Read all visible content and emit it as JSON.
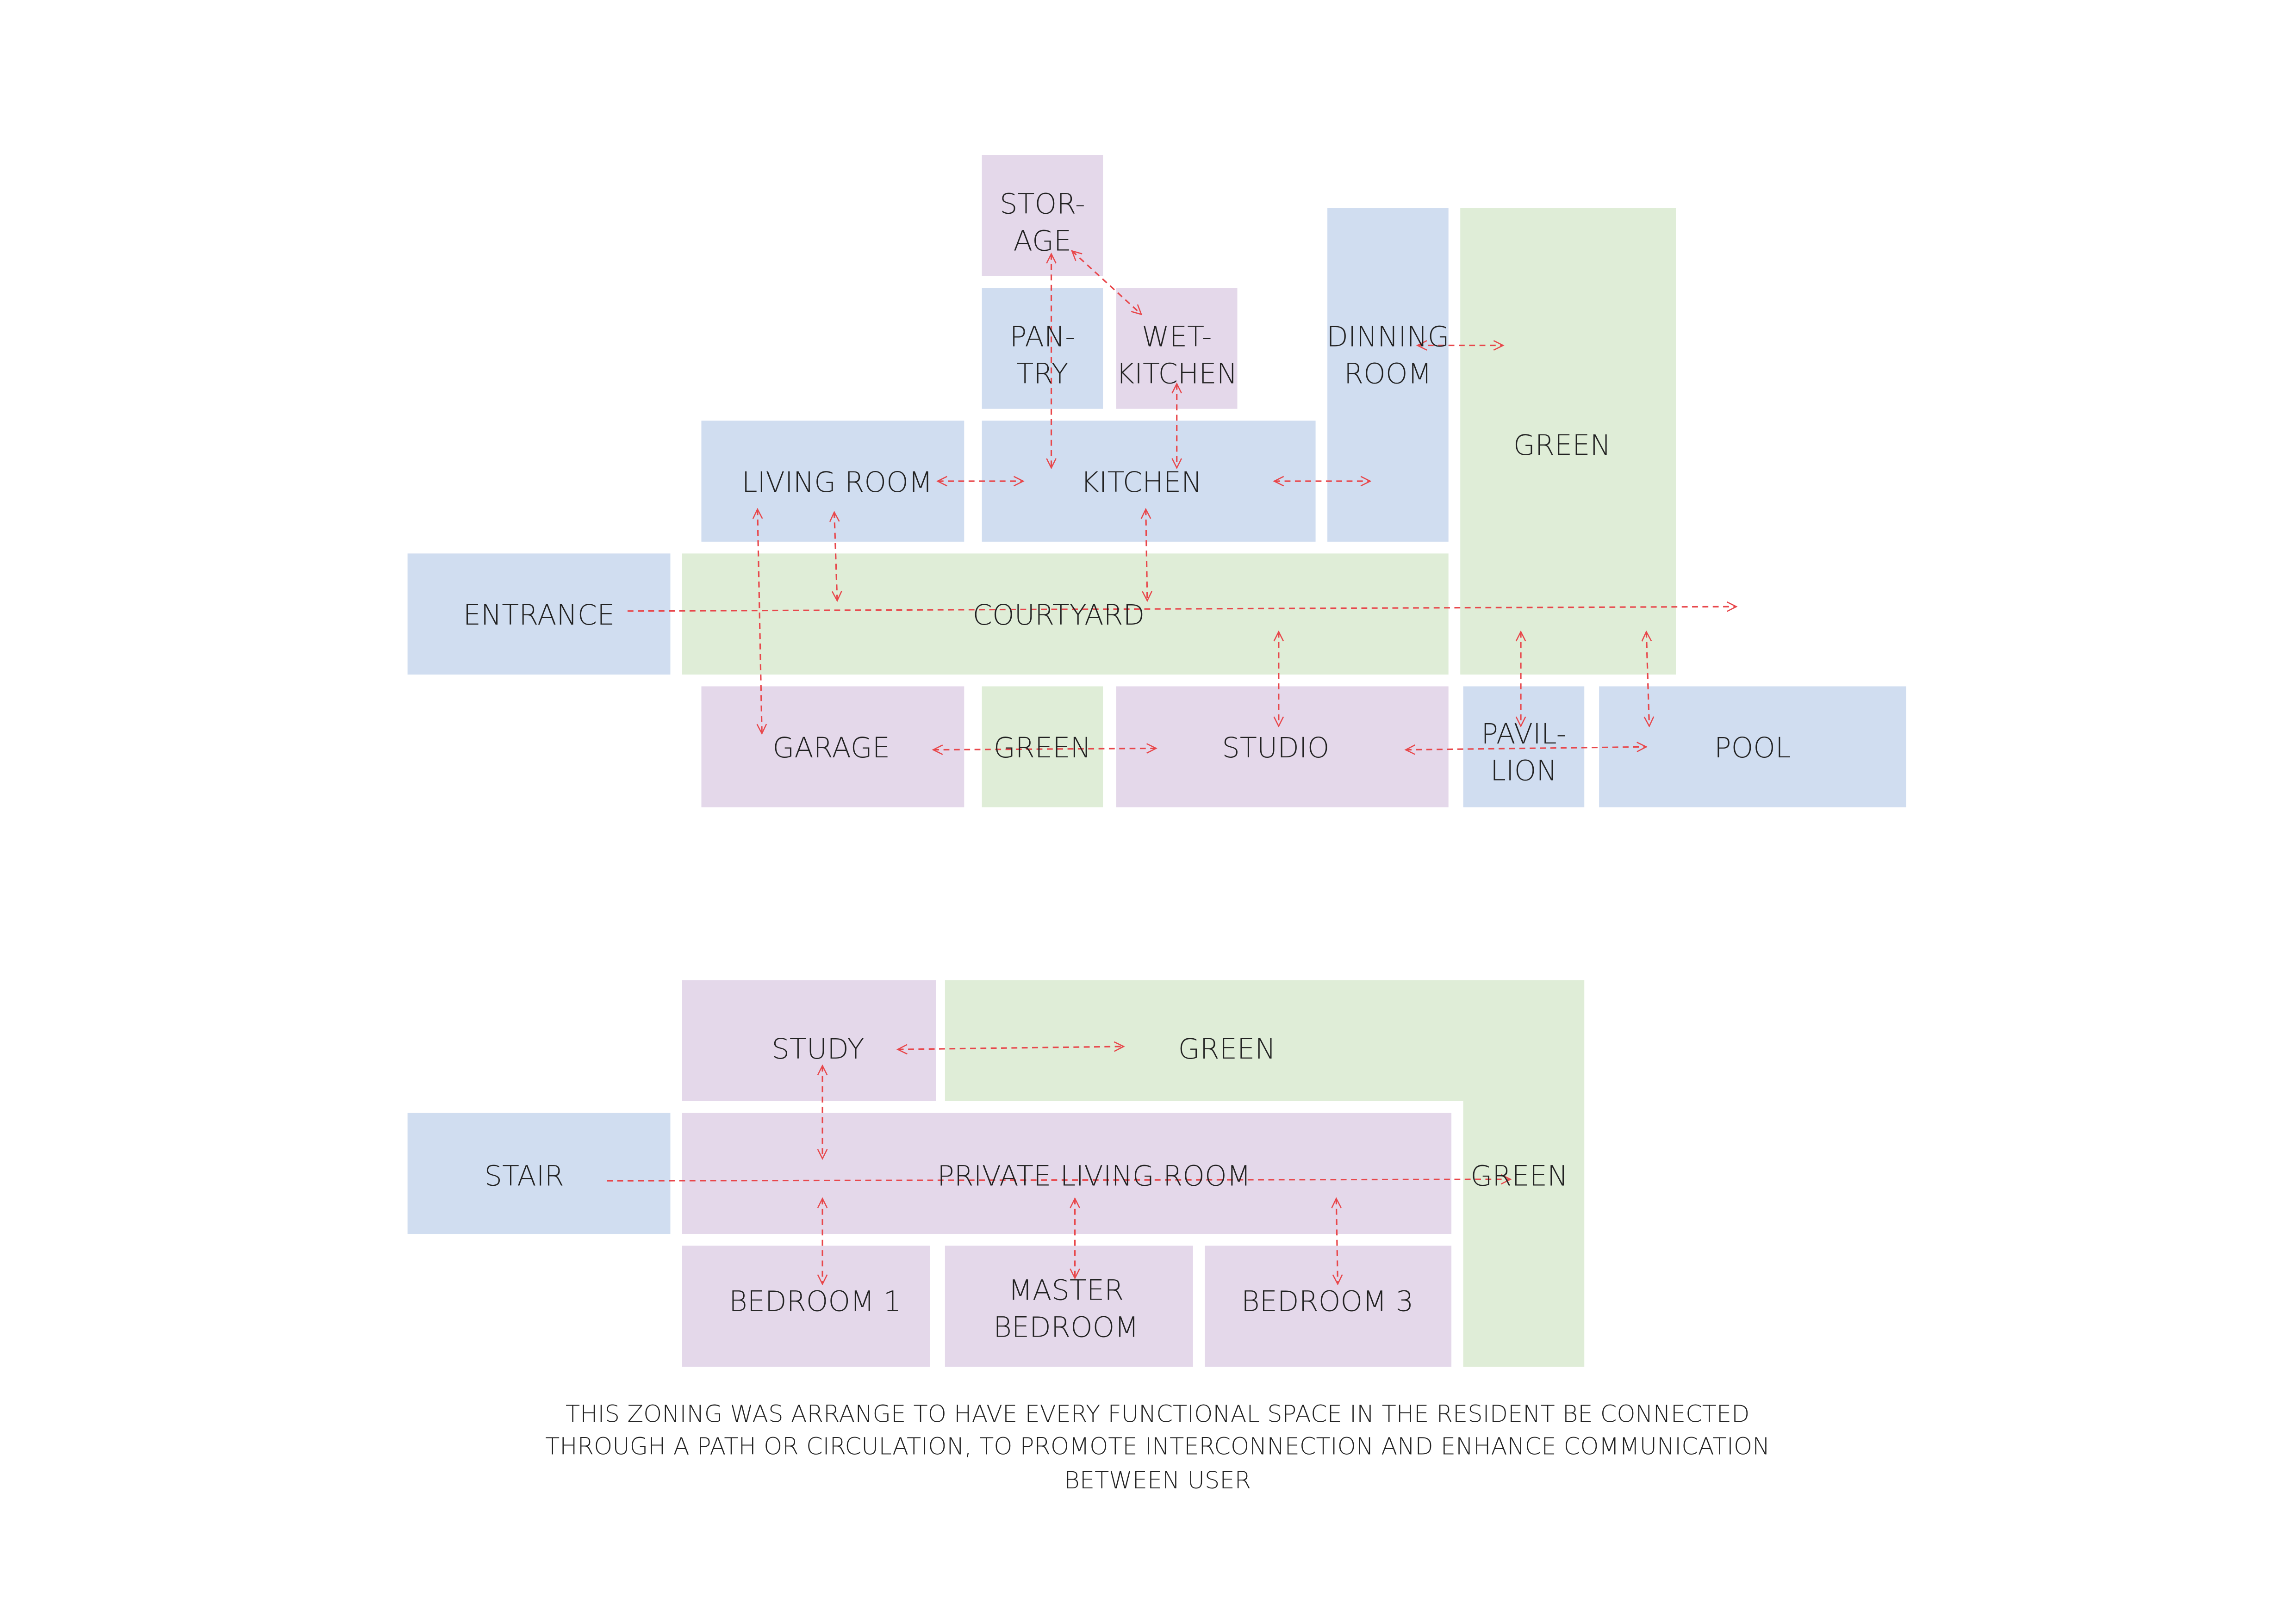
{
  "floor_1": {
    "rooms": [
      {
        "label": [
          "STOR-",
          "AGE"
        ]
      },
      {
        "label": [
          "PAN-",
          "TRY"
        ]
      },
      {
        "label": [
          "WET-",
          "KITCHEN"
        ]
      },
      {
        "label": [
          "DINNING",
          "ROOM"
        ]
      },
      {
        "label": [
          "GREEN"
        ]
      },
      {
        "label": [
          "LIVING ROOM"
        ]
      },
      {
        "label": [
          "KITCHEN"
        ]
      },
      {
        "label": [
          "ENTRANCE"
        ]
      },
      {
        "label": [
          "COURTYARD"
        ]
      },
      {
        "label": [
          "GARAGE"
        ]
      },
      {
        "label": [
          "GREEN"
        ]
      },
      {
        "label": [
          "STUDIO"
        ]
      },
      {
        "label": [
          "PAVIL-",
          "LION"
        ]
      },
      {
        "label": [
          "POOL"
        ]
      }
    ]
  },
  "floor_2": {
    "rooms": [
      {
        "label": [
          "STUDY"
        ]
      },
      {
        "label": [
          "GREEN"
        ]
      },
      {
        "label": [
          "GREEN"
        ]
      },
      {
        "label": [
          "STAIR"
        ]
      },
      {
        "label": [
          "PRIVATE LIVING ROOM"
        ]
      },
      {
        "label": [
          "BEDROOM 1"
        ]
      },
      {
        "label": [
          "MASTER",
          "BEDROOM"
        ]
      },
      {
        "label": [
          "BEDROOM 3"
        ]
      }
    ]
  },
  "caption": [
    "THIS ZONING WAS ARRANGE TO HAVE EVERY FUNCTIONAL SPACE IN THE RESIDENT BE CONNECTED",
    "THROUGH A PATH OR CIRCULATION, TO PROMOTE INTERCONNECTION AND ENHANCE COMMUNICATION",
    "BETWEEN USER"
  ]
}
